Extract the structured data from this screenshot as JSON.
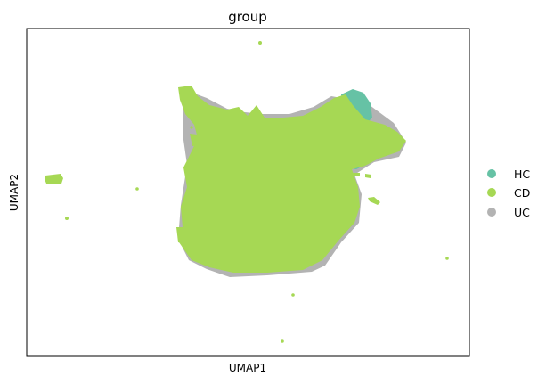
{
  "chart_data": {
    "type": "scatter",
    "title": "group",
    "xlabel": "UMAP1",
    "ylabel": "UMAP2",
    "grid": false,
    "ticks": false,
    "legend": {
      "placement": "right",
      "entries": [
        {
          "name": "HC",
          "color": "#66c2a5"
        },
        {
          "name": "CD",
          "color": "#a6d854"
        },
        {
          "name": "UC",
          "color": "#b3b3b3"
        }
      ]
    },
    "series": [
      {
        "name": "HC",
        "color": "#66c2a5"
      },
      {
        "name": "CD",
        "color": "#a6d854"
      },
      {
        "name": "UC",
        "color": "#b3b3b3"
      }
    ]
  }
}
